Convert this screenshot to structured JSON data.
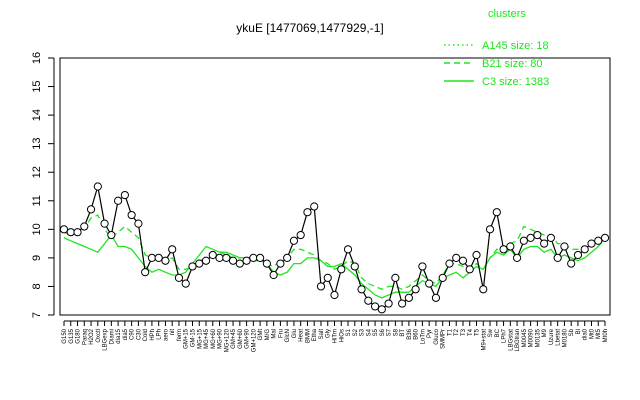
{
  "chart_data": {
    "type": "line",
    "title": "ykuE [1477069,1477929,-1]",
    "xlabel": "",
    "ylabel": "",
    "ylim": [
      7,
      16
    ],
    "yticks": [
      7,
      8,
      9,
      10,
      11,
      12,
      13,
      14,
      15,
      16
    ],
    "legend": {
      "title": "clusters",
      "position": "top-right",
      "entries": [
        {
          "label": "A145 size: 18",
          "style": "dotted"
        },
        {
          "label": "B21 size: 80",
          "style": "dashed"
        },
        {
          "label": "C3 size: 1383",
          "style": "solid"
        }
      ]
    },
    "colors": {
      "line": "#1ee51e",
      "marker": "#000000",
      "axis": "#000000"
    },
    "category_labels": [
      "G150",
      "G135",
      "G180",
      "Paraq",
      "H2O2",
      "Oxctl",
      "LBGexp",
      "Diami",
      "dia15",
      "dia5",
      "C90",
      "C30",
      "Cold",
      "HPh",
      "LPh",
      "aero",
      "nit",
      "ferm",
      "GM+15",
      "GM-15",
      "MG+15",
      "MG+45",
      "MG+60",
      "MG+90",
      "MG+120",
      "GM+45",
      "GM+60",
      "GM+90",
      "GM+120",
      "GMt",
      "M/G",
      "Mal",
      "Fru",
      "GlcN",
      "Glu",
      "Heat",
      "BMM",
      "Etha",
      "Salt",
      "Gly",
      "HiTm",
      "HiOs",
      "S1",
      "S2",
      "S3",
      "S4",
      "S5",
      "S6",
      "S7",
      "S8",
      "BT",
      "B36",
      "B60",
      "LoTm",
      "Pyr",
      "Gluco",
      "SMMPr",
      "T1",
      "T2",
      "T3",
      "T4",
      "T5",
      "M9+stat",
      "Sw",
      "BC",
      "LPh7",
      "LBGstat",
      "LBGtran",
      "M0045",
      "M0090",
      "M0135",
      "M9",
      "Uzure",
      "Lbetat",
      "M0180",
      "Sb",
      "Bl",
      "dia0",
      "Mt0",
      "Mt5",
      "Mt0h"
    ],
    "series": [
      {
        "values": [
          10.0,
          9.9,
          9.9,
          10.1,
          10.7,
          11.5,
          10.2,
          9.8,
          11.0,
          11.2,
          10.5,
          10.2,
          8.5,
          9.0,
          9.0,
          8.9,
          9.3,
          8.3,
          8.1,
          8.7,
          8.8,
          8.9,
          9.1,
          9.0,
          9.0,
          8.9,
          8.8,
          8.9,
          9.0,
          9.0,
          8.8,
          8.4,
          8.8,
          9.0,
          9.6,
          9.8,
          10.6,
          10.8,
          8.0,
          8.3,
          7.7,
          8.6,
          9.3,
          8.7,
          7.9,
          7.5,
          7.3,
          7.2,
          7.4,
          8.3,
          7.4,
          7.6,
          7.9,
          8.7,
          8.1,
          7.6,
          8.3,
          8.8,
          9.0,
          8.9,
          8.6,
          9.1,
          7.9,
          10.0,
          10.6,
          9.3,
          9.4,
          9.0,
          9.6,
          9.7,
          9.8,
          9.5,
          9.7,
          9.0,
          9.4,
          8.8,
          9.1,
          9.3,
          9.5,
          9.6,
          9.7
        ]
      },
      {
        "values": [
          9.9,
          9.8,
          9.9,
          10.0,
          10.4,
          10.5,
          10.0,
          9.7,
          9.9,
          10.1,
          9.9,
          9.7,
          9.1,
          9.0,
          9.0,
          8.9,
          9.0,
          8.6,
          8.6,
          8.7,
          8.9,
          9.0,
          9.1,
          9.2,
          9.1,
          9.0,
          9.0,
          9.0,
          9.0,
          9.0,
          8.8,
          8.7,
          8.9,
          9.0,
          9.3,
          9.3,
          9.2,
          9.1,
          8.9,
          8.8,
          8.6,
          8.7,
          8.9,
          8.8,
          8.3,
          8.1,
          8.0,
          7.9,
          8.0,
          8.0,
          7.9,
          8.0,
          8.2,
          8.4,
          8.2,
          8.1,
          8.4,
          8.8,
          8.8,
          8.7,
          8.6,
          8.8,
          8.6,
          9.0,
          9.3,
          9.3,
          9.5,
          9.6,
          10.1,
          10.0,
          9.9,
          9.8,
          9.8,
          9.5,
          9.5,
          9.3,
          9.3,
          9.3,
          9.5,
          9.6,
          9.7
        ]
      },
      {
        "values": [
          9.7,
          9.6,
          9.5,
          9.4,
          9.3,
          9.2,
          9.5,
          9.8,
          9.4,
          9.4,
          9.3,
          9.0,
          8.7,
          8.5,
          8.6,
          8.5,
          8.4,
          8.4,
          8.5,
          8.8,
          9.1,
          9.4,
          9.3,
          9.2,
          9.2,
          9.1,
          9.0,
          9.0,
          8.9,
          8.9,
          8.8,
          8.5,
          8.4,
          8.5,
          8.8,
          8.8,
          9.0,
          9.0,
          8.9,
          8.7,
          8.7,
          8.8,
          8.6,
          8.4,
          8.1,
          7.9,
          7.7,
          7.6,
          7.7,
          7.8,
          7.8,
          7.8,
          8.0,
          8.2,
          8.1,
          8.0,
          8.3,
          8.4,
          8.5,
          8.3,
          8.5,
          8.7,
          8.6,
          9.0,
          9.2,
          9.1,
          9.3,
          9.0,
          9.3,
          9.4,
          9.4,
          9.2,
          9.3,
          9.0,
          9.1,
          9.0,
          8.9,
          9.0,
          9.2,
          9.4,
          9.7
        ]
      }
    ]
  }
}
